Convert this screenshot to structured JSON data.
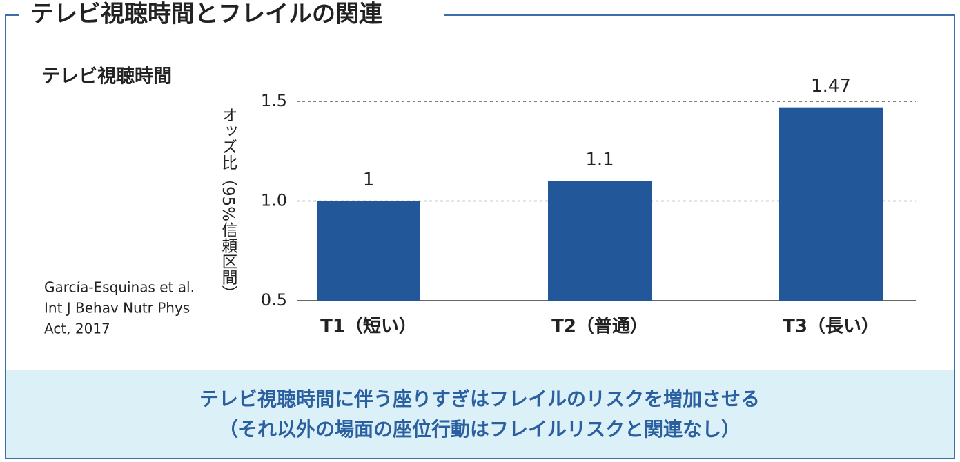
{
  "chart_data": {
    "type": "bar",
    "title": "テレビ視聴時間とフレイルの関連",
    "subtitle": "テレビ視聴時間",
    "y_label": "オッズ比（95%信頼区間）",
    "categories": [
      "T1（短い）",
      "T2（普通）",
      "T3（長い）"
    ],
    "values": [
      1,
      1.1,
      1.47
    ],
    "color": "#22579a",
    "ylim": [
      0.5,
      1.5
    ],
    "yticks": [
      0.5,
      {
        "value": 1,
        "label": "1.0"
      },
      1.5
    ],
    "grid": true
  },
  "citation": [
    "García-Esquinas et al.",
    "Int J Behav Nutr Phys",
    "Act, 2017"
  ],
  "conclusion": [
    "テレビ視聴時間に伴う座りすぎはフレイルのリスクを増加させる",
    "（それ以外の場面の座位行動はフレイルリスクと関連なし）"
  ]
}
